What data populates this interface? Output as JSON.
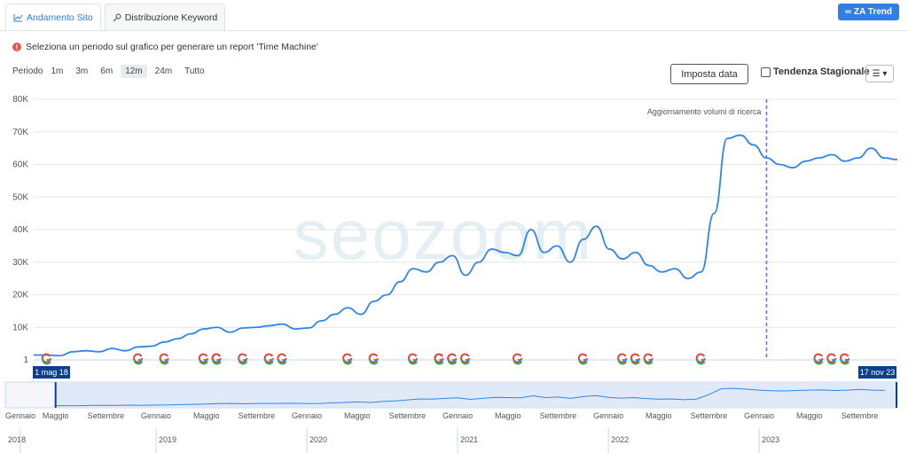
{
  "tabs": [
    {
      "label": "Andamento Sito",
      "icon": "chart-icon"
    },
    {
      "label": "Distribuzione Keyword",
      "icon": "key-icon"
    }
  ],
  "trend_button": {
    "label": "ZA Trend",
    "icon": "glasses-icon"
  },
  "info_text": "Seleziona un periodo sul grafico per generare un report 'Time Machine'",
  "period": {
    "label": "Periodo",
    "options": [
      "1m",
      "3m",
      "6m",
      "12m",
      "24m",
      "Tutto"
    ],
    "selected": "12m"
  },
  "imposta_label": "Imposta data",
  "stagionale_label": "Tendenza Stagionale",
  "watermark": "seozoom",
  "colors": {
    "line": "#2f86e8",
    "annotation": "#6a6ae8",
    "accent": "#2f7fe6",
    "navigator_bg": "#dde8f6",
    "flag": "#0d3f8c"
  },
  "chart_data": {
    "type": "line",
    "title": "",
    "xlabel": "",
    "ylabel": "",
    "yticks": [
      "1",
      "10K",
      "20K",
      "30K",
      "40K",
      "50K",
      "60K",
      "70K",
      "80K"
    ],
    "ylim": [
      0,
      80000
    ],
    "xlim": [
      "2018-01",
      "2023-12"
    ],
    "annotation": {
      "x": "2023-01",
      "label": "Aggiornamento volumi di ricerca"
    },
    "series": [
      {
        "x": [
          "2018-05",
          "2018-06",
          "2018-07",
          "2018-08",
          "2018-09",
          "2018-10",
          "2018-11",
          "2018-12",
          "2019-01",
          "2019-02",
          "2019-03",
          "2019-04",
          "2019-05",
          "2019-06",
          "2019-07",
          "2019-08",
          "2019-09",
          "2019-10",
          "2019-11",
          "2019-12",
          "2020-01",
          "2020-02",
          "2020-03",
          "2020-04",
          "2020-05",
          "2020-06",
          "2020-07",
          "2020-08",
          "2020-09",
          "2020-10",
          "2020-11",
          "2020-12",
          "2021-01",
          "2021-02",
          "2021-03",
          "2021-04",
          "2021-05",
          "2021-06",
          "2021-07",
          "2021-08",
          "2021-09",
          "2021-10",
          "2021-11",
          "2021-12",
          "2022-01",
          "2022-02",
          "2022-03",
          "2022-04",
          "2022-05",
          "2022-06",
          "2022-07",
          "2022-08",
          "2022-09",
          "2022-10",
          "2022-11",
          "2022-12",
          "2023-01",
          "2023-02",
          "2023-03",
          "2023-04",
          "2023-05",
          "2023-06",
          "2023-07",
          "2023-08",
          "2023-09",
          "2023-10",
          "2023-11"
        ],
        "values": [
          1500,
          1500,
          1300,
          2500,
          2800,
          2500,
          3500,
          2800,
          4000,
          4200,
          5500,
          6500,
          8000,
          9500,
          10000,
          8500,
          9800,
          10000,
          10500,
          11000,
          9500,
          9800,
          12000,
          14000,
          16000,
          14000,
          18000,
          20000,
          24000,
          28000,
          27000,
          30000,
          32000,
          26000,
          30000,
          34000,
          33000,
          32000,
          40000,
          33000,
          35000,
          30000,
          37000,
          41000,
          34000,
          31000,
          33000,
          29000,
          27000,
          28000,
          25000,
          27000,
          45000,
          68000,
          69000,
          66000,
          62000,
          60000,
          59000,
          61000,
          62000,
          63000,
          61000,
          62000,
          65000,
          62000,
          61500
        ]
      }
    ],
    "x_month_labels": [
      "Gennaio",
      "Maggio",
      "Settembre",
      "Gennaio",
      "Maggio",
      "Settembre",
      "Gennaio",
      "Maggio",
      "Settembre",
      "Gennaio",
      "Maggio",
      "Settembre",
      "Gennaio",
      "Maggio",
      "Settembre",
      "Gennaio",
      "Maggio",
      "Settembre"
    ],
    "x_year_labels": [
      "2018",
      "2019",
      "2020",
      "2021",
      "2022",
      "2023"
    ],
    "range_start_label": "1 mag 18",
    "range_end_label": "17 nov 23",
    "google_update_markers": [
      "2018-06",
      "2019-01",
      "2019-03",
      "2019-06",
      "2019-07",
      "2019-07",
      "2019-09",
      "2019-11",
      "2019-12",
      "2020-05",
      "2020-07",
      "2020-10",
      "2020-12",
      "2020-12",
      "2021-01",
      "2021-01",
      "2021-02",
      "2021-06",
      "2021-11",
      "2022-02",
      "2022-03",
      "2022-04",
      "2022-08",
      "2023-05",
      "2023-06",
      "2023-07"
    ]
  }
}
